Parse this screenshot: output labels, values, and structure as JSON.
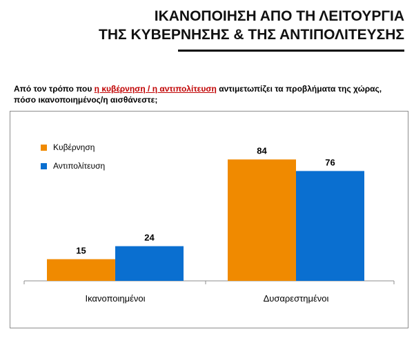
{
  "title": {
    "line1": "ΙΚΑΝΟΠΟΙΗΣΗ ΑΠΟ ΤΗ ΛΕΙΤΟΥΡΓΙΑ",
    "line2": "ΤΗΣ ΚΥΒΕΡΝΗΣΗΣ & ΤΗΣ ΑΝΤΙΠΟΛΙΤΕΥΣΗΣ"
  },
  "question": {
    "before": "Από τον τρόπο που ",
    "highlight": "η κυβέρνηση / η αντιπολίτευση",
    "after": " αντιμετωπίζει τα προβλήματα της χώρας, πόσο ικανοποιημένος/η αισθάνεστε;"
  },
  "colors": {
    "government": "#f08a00",
    "opposition": "#0a6fd0",
    "highlight_text": "#c00000"
  },
  "chart_data": {
    "type": "bar",
    "categories": [
      "Ικανοποιημένοι",
      "Δυσαρεστημένοι"
    ],
    "series": [
      {
        "name": "Κυβέρνηση",
        "values": [
          15,
          84
        ]
      },
      {
        "name": "Αντιπολίτευση",
        "values": [
          24,
          76
        ]
      }
    ],
    "ylim": [
      0,
      100
    ],
    "grid": false,
    "legend": "top-left",
    "data_labels": true
  }
}
